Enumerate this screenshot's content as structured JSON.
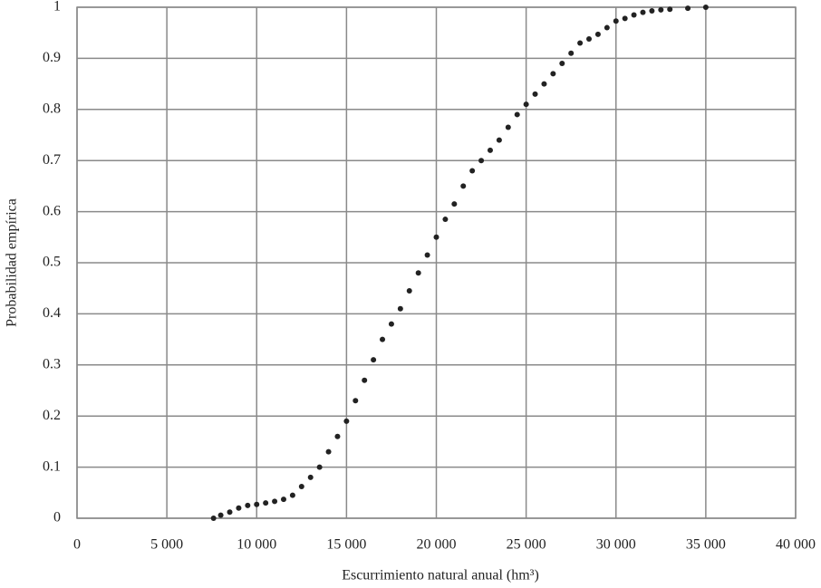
{
  "chart_data": {
    "type": "scatter",
    "x_label": "Escurrimiento natural anual (hm³)",
    "y_label": "Probabilidad empírica",
    "color": "#222222",
    "grid": true,
    "xlim": [
      0,
      40000
    ],
    "ylim": [
      0,
      1
    ],
    "xticks": [
      0,
      {
        "value": 5000,
        "label": "5 000"
      },
      {
        "value": 10000,
        "label": "10 000"
      },
      {
        "value": 15000,
        "label": "15 000"
      },
      {
        "value": 20000,
        "label": "20 000"
      },
      {
        "value": 25000,
        "label": "25 000"
      },
      {
        "value": 30000,
        "label": "30 000"
      },
      {
        "value": 35000,
        "label": "35 000"
      },
      {
        "value": 40000,
        "label": "40 000"
      }
    ],
    "yticks": [
      0,
      0.1,
      0.2,
      0.3,
      0.4,
      0.5,
      0.6,
      0.7,
      0.8,
      0.9,
      1
    ],
    "x": [
      7600,
      8000,
      8500,
      9000,
      9500,
      10000,
      10500,
      11000,
      11500,
      12000,
      12500,
      13000,
      13500,
      14000,
      14500,
      15000,
      15500,
      16000,
      16500,
      17000,
      17500,
      18000,
      18500,
      19000,
      19500,
      20000,
      20500,
      21000,
      21500,
      22000,
      22500,
      23000,
      23500,
      24000,
      24500,
      25000,
      25500,
      26000,
      26500,
      27000,
      27500,
      28000,
      28500,
      29000,
      29500,
      30000,
      30500,
      31000,
      31500,
      32000,
      32500,
      33000,
      34000,
      35000
    ],
    "values": [
      0,
      0.006,
      0.012,
      0.02,
      0.025,
      0.027,
      0.03,
      0.033,
      0.037,
      0.045,
      0.062,
      0.08,
      0.1,
      0.13,
      0.16,
      0.19,
      0.23,
      0.27,
      0.31,
      0.35,
      0.38,
      0.41,
      0.445,
      0.48,
      0.515,
      0.55,
      0.585,
      0.615,
      0.65,
      0.68,
      0.7,
      0.72,
      0.74,
      0.765,
      0.79,
      0.81,
      0.83,
      0.85,
      0.87,
      0.89,
      0.91,
      0.93,
      0.938,
      0.947,
      0.96,
      0.973,
      0.978,
      0.985,
      0.99,
      0.993,
      0.995,
      0.996,
      0.998,
      1
    ]
  }
}
